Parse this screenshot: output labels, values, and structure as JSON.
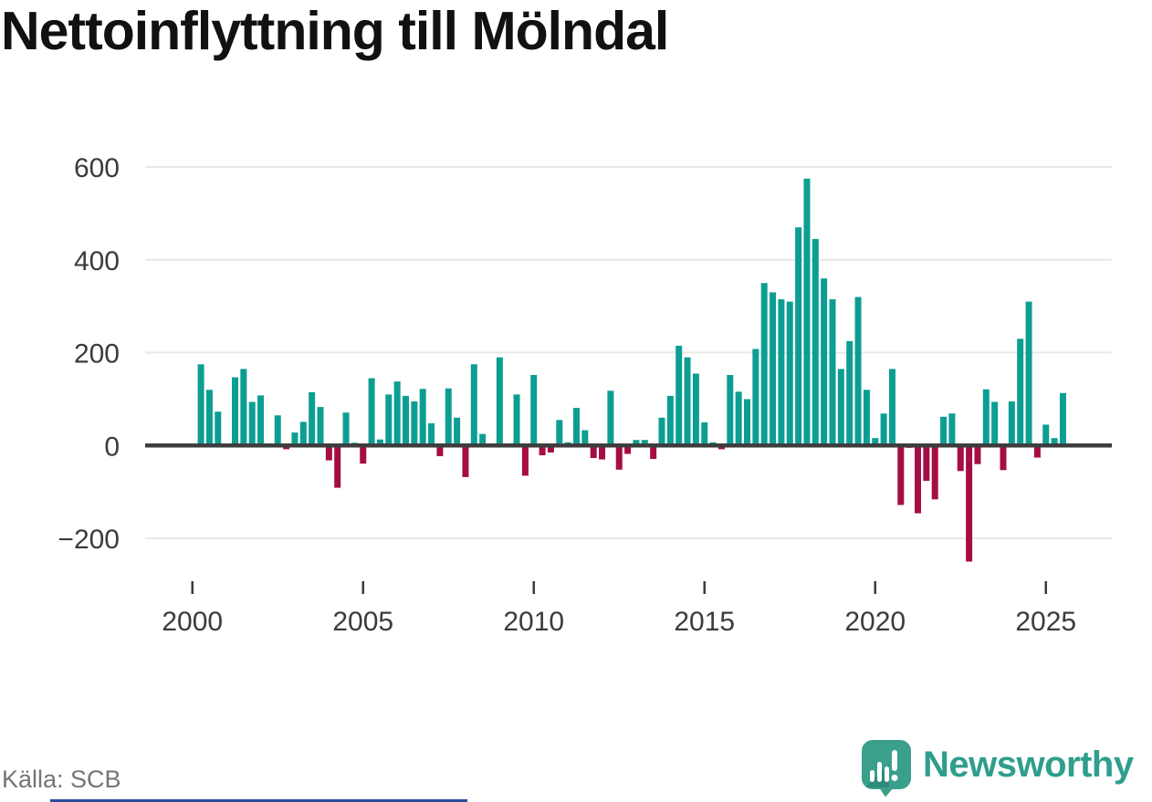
{
  "chart_data": {
    "type": "bar",
    "title": "Nettoinflyttning till Mölndal",
    "source": "Källa: SCB",
    "frequency": "quarterly",
    "start_period": "2000 Q2",
    "end_period": "2025 Q3",
    "x_tick_labels": [
      "2000",
      "2005",
      "2010",
      "2015",
      "2020",
      "2025"
    ],
    "y_ticks": [
      -200,
      0,
      200,
      400,
      600
    ],
    "ylim": [
      -270,
      620
    ],
    "grid": "horizontal-light-gridlines, thick dark zero axis",
    "legend": "none (color encodes sign: teal positive, crimson negative)",
    "colors": {
      "positive": "#0D9E93",
      "negative": "#A50D45",
      "axis": "#3D3D3D",
      "gridline": "#E8E8E8",
      "tick": "#3B3B3B"
    },
    "values": [
      175,
      120,
      73,
      0,
      147,
      165,
      94,
      108,
      0,
      65,
      -8,
      28,
      51,
      115,
      83,
      -32,
      -91,
      71,
      6,
      -39,
      145,
      13,
      110,
      138,
      107,
      95,
      122,
      48,
      -23,
      123,
      60,
      -68,
      175,
      25,
      0,
      190,
      0,
      110,
      -65,
      152,
      -21,
      -15,
      55,
      7,
      81,
      33,
      -27,
      -30,
      118,
      -52,
      -18,
      12,
      12,
      -29,
      60,
      107,
      215,
      190,
      155,
      50,
      7,
      -8,
      152,
      116,
      100,
      208,
      350,
      330,
      315,
      310,
      470,
      575,
      445,
      360,
      315,
      165,
      225,
      320,
      120,
      16,
      69,
      165,
      -128,
      -5,
      -146,
      -76,
      -116,
      62,
      69,
      -55,
      -250,
      -40,
      121,
      94,
      -53,
      95,
      230,
      310,
      -26,
      45,
      16,
      113
    ]
  },
  "branding": {
    "wordmark": "Newsworthy",
    "logo_color": "#3AA08C",
    "logo_shade_color": "#2E8B7B",
    "wordmark_color": "#2F9E8C"
  }
}
